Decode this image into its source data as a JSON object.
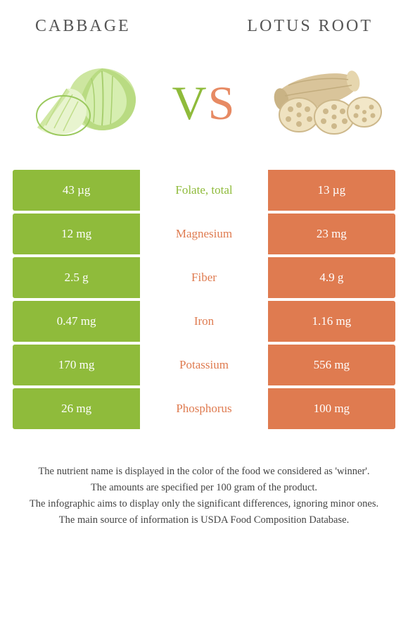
{
  "header": {
    "left_title": "CABBAGE",
    "right_title": "LOTUS ROOT"
  },
  "vs": {
    "v": "V",
    "s": "S"
  },
  "colors": {
    "green": "#8fbb3b",
    "orange": "#df7b50",
    "green_text": "#8fbb3b",
    "orange_text": "#df7b50",
    "white": "#ffffff"
  },
  "rows": [
    {
      "left": "43 µg",
      "label": "Folate, total",
      "right": "13 µg",
      "winner": "green"
    },
    {
      "left": "12 mg",
      "label": "Magnesium",
      "right": "23 mg",
      "winner": "orange"
    },
    {
      "left": "2.5 g",
      "label": "Fiber",
      "right": "4.9 g",
      "winner": "orange"
    },
    {
      "left": "0.47 mg",
      "label": "Iron",
      "right": "1.16 mg",
      "winner": "orange"
    },
    {
      "left": "170 mg",
      "label": "Potassium",
      "right": "556 mg",
      "winner": "orange"
    },
    {
      "left": "26 mg",
      "label": "Phosphorus",
      "right": "100 mg",
      "winner": "orange"
    }
  ],
  "footer": {
    "line1": "The nutrient name is displayed in the color of the food we considered as 'winner'.",
    "line2": "The amounts are specified per 100 gram of the product.",
    "line3": "The infographic aims to display only the significant differences, ignoring minor ones.",
    "line4": "The main source of information is USDA Food Composition Database."
  }
}
